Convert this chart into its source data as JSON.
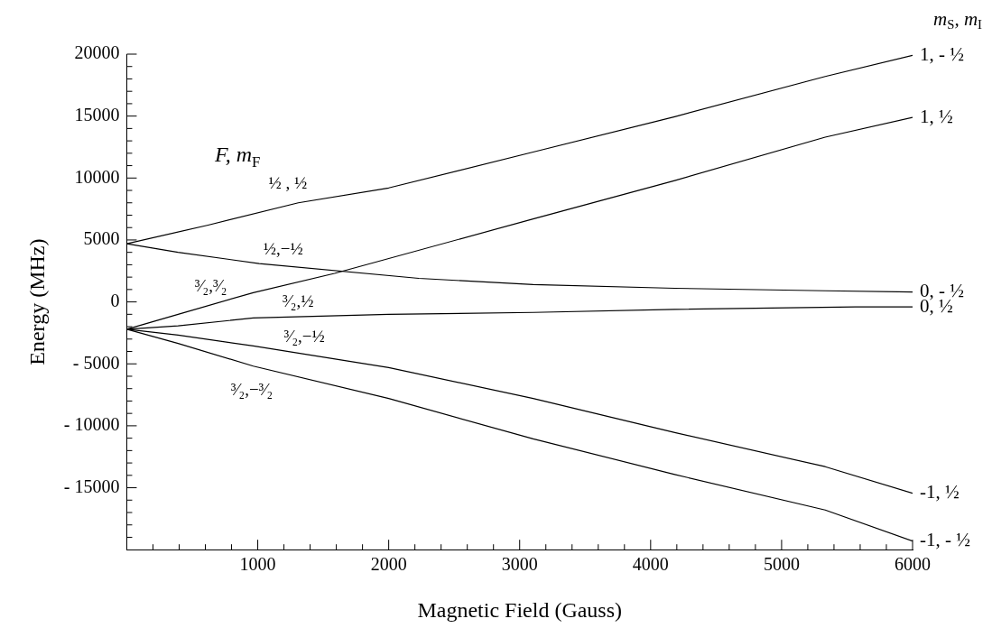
{
  "chart_data": {
    "type": "line",
    "xlabel": "Magnetic Field (Gauss)",
    "ylabel": "Energy (MHz)",
    "legend_title": "m$_{S}$, m$_{I}$",
    "xlim": [
      0,
      6000
    ],
    "ylim": [
      -20000,
      20000
    ],
    "xticks": [
      {
        "value": 200,
        "label": null
      },
      {
        "value": 400,
        "label": null
      },
      {
        "value": 600,
        "label": null
      },
      {
        "value": 800,
        "label": null
      },
      1000,
      {
        "value": 1200,
        "label": null
      },
      {
        "value": 1400,
        "label": null
      },
      {
        "value": 1600,
        "label": null
      },
      {
        "value": 1800,
        "label": null
      },
      2000,
      {
        "value": 2200,
        "label": null
      },
      {
        "value": 2400,
        "label": null
      },
      {
        "value": 2600,
        "label": null
      },
      {
        "value": 2800,
        "label": null
      },
      3000,
      {
        "value": 3200,
        "label": null
      },
      {
        "value": 3400,
        "label": null
      },
      {
        "value": 3600,
        "label": null
      },
      {
        "value": 3800,
        "label": null
      },
      4000,
      {
        "value": 4200,
        "label": null
      },
      {
        "value": 4400,
        "label": null
      },
      {
        "value": 4600,
        "label": null
      },
      {
        "value": 4800,
        "label": null
      },
      5000,
      {
        "value": 5200,
        "label": null
      },
      {
        "value": 5400,
        "label": null
      },
      {
        "value": 5600,
        "label": null
      },
      {
        "value": 5800,
        "label": null
      },
      6000
    ],
    "yticks": [
      {
        "value": -19000,
        "label": null
      },
      {
        "value": -18000,
        "label": null
      },
      {
        "value": -17000,
        "label": null
      },
      {
        "value": -16000,
        "label": null
      },
      {
        "value": -15000,
        "label": "- 15000"
      },
      {
        "value": -14000,
        "label": null
      },
      {
        "value": -13000,
        "label": null
      },
      {
        "value": -12000,
        "label": null
      },
      {
        "value": -11000,
        "label": null
      },
      {
        "value": -10000,
        "label": "- 10000"
      },
      {
        "value": -9000,
        "label": null
      },
      {
        "value": -8000,
        "label": null
      },
      {
        "value": -7000,
        "label": null
      },
      {
        "value": -6000,
        "label": null
      },
      {
        "value": -5000,
        "label": "- 5000"
      },
      {
        "value": -4000,
        "label": null
      },
      {
        "value": -3000,
        "label": null
      },
      {
        "value": -2000,
        "label": null
      },
      {
        "value": -1000,
        "label": null
      },
      0,
      {
        "value": 1000,
        "label": null
      },
      {
        "value": 2000,
        "label": null
      },
      {
        "value": 3000,
        "label": null
      },
      {
        "value": 4000,
        "label": null
      },
      5000,
      {
        "value": 6000,
        "label": null
      },
      {
        "value": 7000,
        "label": null
      },
      {
        "value": 8000,
        "label": null
      },
      {
        "value": 9000,
        "label": null
      },
      10000,
      {
        "value": 11000,
        "label": null
      },
      {
        "value": 12000,
        "label": null
      },
      {
        "value": 13000,
        "label": null
      },
      {
        "value": 14000,
        "label": null
      },
      15000,
      {
        "value": 16000,
        "label": null
      },
      {
        "value": 17000,
        "label": null
      },
      {
        "value": 18000,
        "label": null
      },
      {
        "value": 19000,
        "label": null
      },
      20000
    ],
    "marker": "none",
    "line_style": "solid",
    "series": [
      {
        "name": "1, - ½",
        "color": "#000000",
        "x": [
          0,
          621,
          1310,
          2000,
          3103,
          4184,
          5333,
          6000
        ],
        "values": [
          4700,
          6200,
          8000,
          9200,
          12100,
          14950,
          18200,
          19900
        ]
      },
      {
        "name": "1, ½",
        "color": "#000000",
        "x": [
          0,
          392,
          966,
          1586,
          3103,
          4184,
          5333,
          6000
        ],
        "values": [
          -2200,
          -1000,
          750,
          2300,
          6700,
          9800,
          13300,
          14900
        ]
      },
      {
        "name": "0, - ½",
        "color": "#000000",
        "x": [
          0,
          391,
          1011,
          2230,
          3103,
          4184,
          5333,
          6000
        ],
        "values": [
          4700,
          4000,
          3100,
          1900,
          1400,
          1100,
          900,
          800
        ]
      },
      {
        "name": "0, ½",
        "color": "#000000",
        "x": [
          0,
          392,
          966,
          2000,
          3103,
          4184,
          5563,
          6000
        ],
        "values": [
          -2200,
          -1930,
          -1300,
          -1000,
          -850,
          -600,
          -400,
          -400
        ]
      },
      {
        "name": "-1, ½",
        "color": "#000000",
        "x": [
          0,
          392,
          966,
          2000,
          3103,
          4184,
          5333,
          6000
        ],
        "values": [
          -2200,
          -2680,
          -3550,
          -5300,
          -7800,
          -10550,
          -13300,
          -15450
        ]
      },
      {
        "name": "-1, - ½",
        "color": "#000000",
        "x": [
          0,
          392,
          966,
          2000,
          3103,
          4184,
          5333,
          6000
        ],
        "values": [
          -2200,
          -3350,
          -5180,
          -7800,
          -11050,
          -13930,
          -16800,
          -19300
        ]
      }
    ],
    "annotations": [
      "F, m$_{F}$",
      "½ , ½",
      "½,−½",
      "³⁄₂,³⁄₂",
      "³⁄₂,½",
      "³⁄₂,−½",
      "³⁄₂,−³⁄₂"
    ]
  }
}
